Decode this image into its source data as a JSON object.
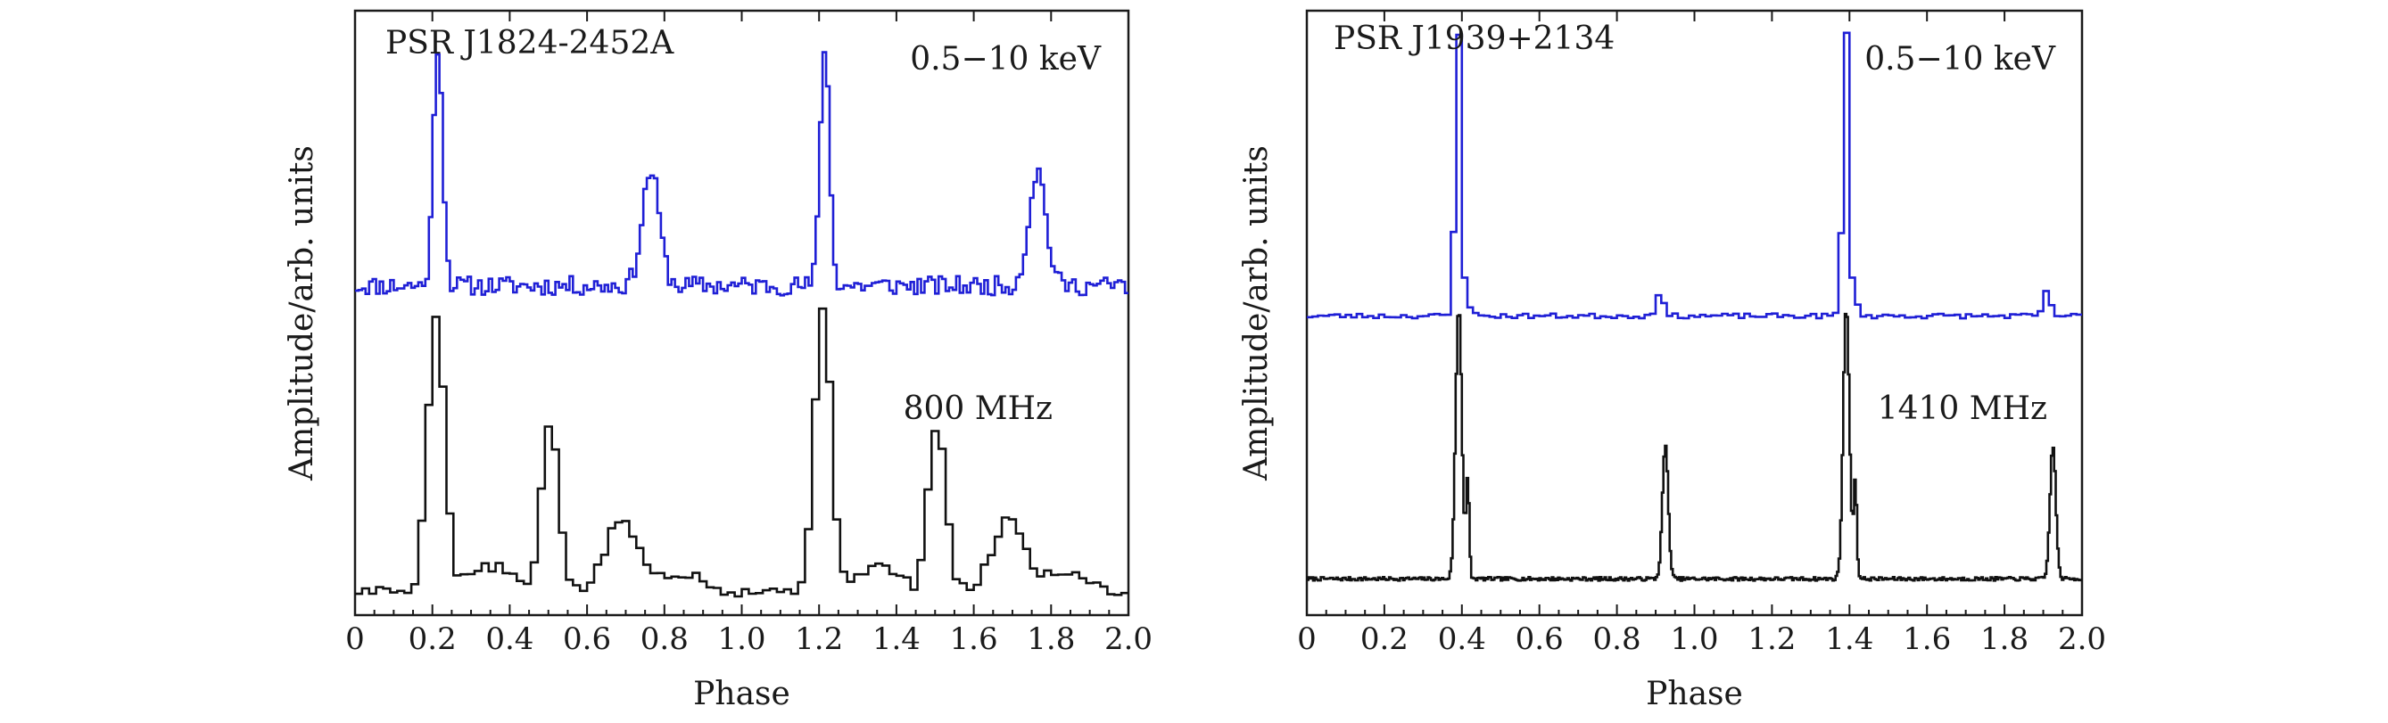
{
  "chart_data": [
    {
      "type": "line",
      "title": "PSR J1824-2452A",
      "xlabel": "Phase",
      "ylabel": "Amplitude/arb. units",
      "xlim": [
        0,
        2.0
      ],
      "ylim": [
        0,
        1
      ],
      "xticks": [
        "0",
        "0.2",
        "0.4",
        "0.6",
        "0.8",
        "1.0",
        "1.2",
        "1.4",
        "1.6",
        "1.8",
        "2.0"
      ],
      "series": [
        {
          "name": "0.5−10 keV",
          "label": "0.5−10 keV",
          "color": "#1f1fd6",
          "offset": 0.545,
          "noise": 0.016,
          "bins": 220,
          "seed": 11,
          "peaks": [
            {
              "center": 0.215,
              "height": 0.4,
              "width": 0.012
            },
            {
              "center": 0.765,
              "height": 0.19,
              "width": 0.022
            }
          ],
          "tails": []
        },
        {
          "name": "800 MHz",
          "label": "800 MHz",
          "color": "#111111",
          "offset": 0.04,
          "noise": 0.009,
          "bins": 110,
          "seed": 5,
          "peaks": [
            {
              "center": 0.21,
              "height": 0.46,
              "width": 0.022
            },
            {
              "center": 0.505,
              "height": 0.28,
              "width": 0.022
            },
            {
              "center": 0.69,
              "height": 0.12,
              "width": 0.04
            }
          ],
          "tails": [
            {
              "start": 0.25,
              "end": 0.45,
              "height": 0.04
            },
            {
              "start": 0.73,
              "end": 0.95,
              "height": 0.03
            }
          ]
        }
      ]
    },
    {
      "type": "line",
      "title": "PSR J1939+2134",
      "xlabel": "Phase",
      "ylabel": "Amplitude/arb. units",
      "xlim": [
        0,
        2.0
      ],
      "ylim": [
        0,
        1
      ],
      "xticks": [
        "0",
        "0.2",
        "0.4",
        "0.6",
        "0.8",
        "1.0",
        "1.2",
        "1.4",
        "1.6",
        "1.8",
        "2.0"
      ],
      "series": [
        {
          "name": "0.5−10 keV",
          "label": "0.5−10 keV",
          "color": "#1f1fd6",
          "offset": 0.495,
          "noise": 0.004,
          "bins": 140,
          "seed": 23,
          "peaks": [
            {
              "center": 0.39,
              "height": 0.46,
              "width": 0.007
            },
            {
              "center": 0.4,
              "height": 0.05,
              "width": 0.014
            },
            {
              "center": 0.91,
              "height": 0.04,
              "width": 0.009
            }
          ],
          "tails": []
        },
        {
          "name": "1410 MHz",
          "label": "1410 MHz",
          "color": "#111111",
          "offset": 0.06,
          "noise": 0.003,
          "bins": 500,
          "seed": 7,
          "peaks": [
            {
              "center": 0.392,
              "height": 0.45,
              "width": 0.008
            },
            {
              "center": 0.415,
              "height": 0.16,
              "width": 0.004
            },
            {
              "center": 0.925,
              "height": 0.22,
              "width": 0.0075
            }
          ],
          "tails": []
        }
      ]
    }
  ]
}
